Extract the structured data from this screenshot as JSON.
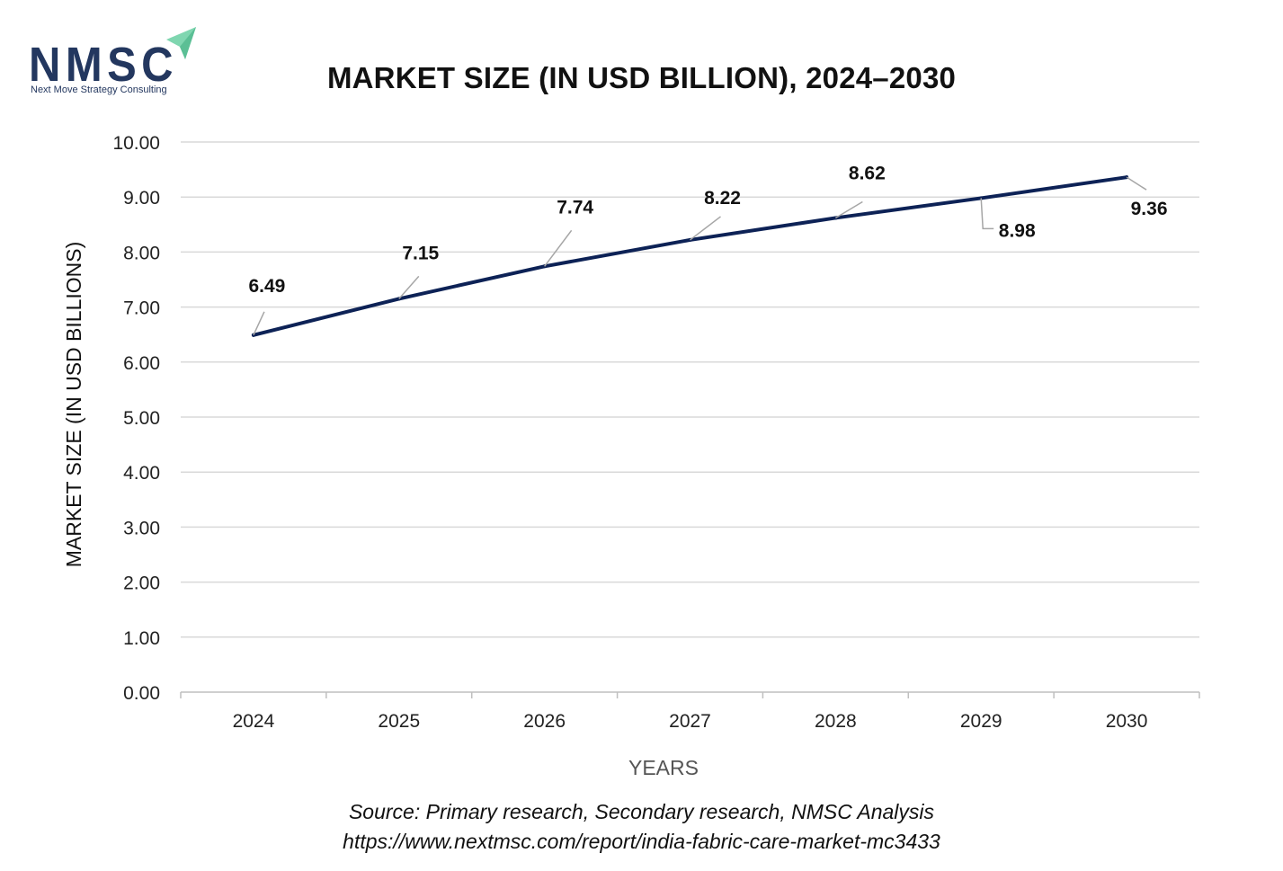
{
  "logo": {
    "text": "NMSC",
    "tagline": "Next Move Strategy Consulting",
    "icon": "arrow-logo-icon",
    "colors": {
      "text": "#23375f",
      "accent": "#7fd6b0"
    }
  },
  "chart_data": {
    "type": "line",
    "title": "MARKET SIZE (IN USD BILLION), 2024–2030",
    "xlabel": "YEARS",
    "ylabel": "MARKET SIZE (IN USD BILLIONS)",
    "categories": [
      "2024",
      "2025",
      "2026",
      "2027",
      "2028",
      "2029",
      "2030"
    ],
    "series": [
      {
        "values": [
          6.49,
          7.15,
          7.74,
          8.22,
          8.62,
          8.98,
          9.36
        ]
      }
    ],
    "data_labels": [
      "6.49",
      "7.15",
      "7.74",
      "8.22",
      "8.62",
      "8.98",
      "9.36"
    ],
    "ylim": [
      0,
      10
    ],
    "y_ticks": [
      "0.00",
      "1.00",
      "2.00",
      "3.00",
      "4.00",
      "5.00",
      "6.00",
      "7.00",
      "8.00",
      "9.00",
      "10.00"
    ],
    "grid": true,
    "legend": "none",
    "line_color": "#0d2256"
  },
  "source": "Source: Primary research, Secondary research, NMSC Analysis",
  "url": "https://www.nextmsc.com/report/india-fabric-care-market-mc3433"
}
